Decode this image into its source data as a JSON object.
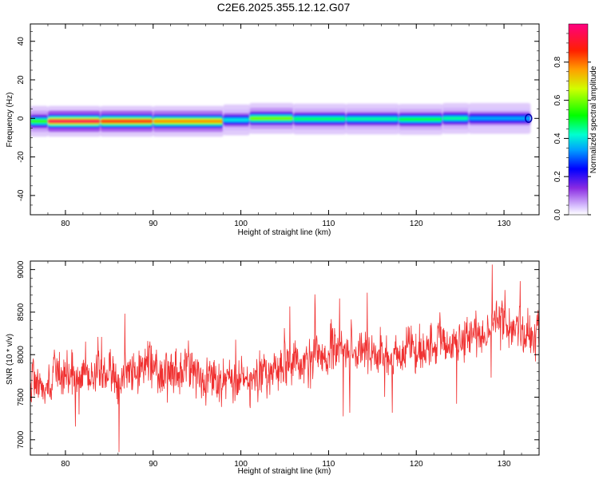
{
  "title": "C2E6.2025.355.12.12.G07",
  "colors": {
    "snr_line": "#f03030",
    "axis": "#000000",
    "background": "#ffffff"
  },
  "chart_data": [
    {
      "type": "heatmap",
      "name": "spectrogram",
      "xlabel": "Height of straight line (km)",
      "ylabel": "Frequency (Hz)",
      "xlim": [
        76,
        134
      ],
      "ylim": [
        -50,
        49
      ],
      "xticks": [
        80,
        90,
        100,
        110,
        120,
        130
      ],
      "yticks": [
        -40,
        -20,
        0,
        20,
        40
      ],
      "colorbar": {
        "label": "Normalized spectral amplitude",
        "range": [
          0,
          1
        ],
        "ticks": [
          0.0,
          0.2,
          0.4,
          0.6,
          0.8
        ],
        "tick_labels": [
          "0.0",
          "0.2",
          "0.4",
          "0.6",
          "0.8"
        ]
      },
      "ridge_segments": [
        {
          "x0": 76,
          "x1": 78,
          "center": -1.5,
          "amplitude": 0.55
        },
        {
          "x0": 78,
          "x1": 84,
          "center": -1.5,
          "amplitude": 0.95
        },
        {
          "x0": 84,
          "x1": 90,
          "center": -1.5,
          "amplitude": 0.88
        },
        {
          "x0": 90,
          "x1": 98,
          "center": -1.5,
          "amplitude": 0.78
        },
        {
          "x0": 98,
          "x1": 101,
          "center": -0.8,
          "amplitude": 0.4
        },
        {
          "x0": 101,
          "x1": 106,
          "center": 0,
          "amplitude": 0.6
        },
        {
          "x0": 106,
          "x1": 112,
          "center": -0.3,
          "amplitude": 0.48
        },
        {
          "x0": 112,
          "x1": 118,
          "center": -0.3,
          "amplitude": 0.45
        },
        {
          "x0": 118,
          "x1": 123,
          "center": -0.5,
          "amplitude": 0.5
        },
        {
          "x0": 123,
          "x1": 126,
          "center": 0,
          "amplitude": 0.45
        },
        {
          "x0": 126,
          "x1": 133,
          "center": 0,
          "amplitude": 0.35
        }
      ]
    },
    {
      "type": "line",
      "name": "snr",
      "xlabel": "Height of straight line (km)",
      "ylabel": "SNR (10 * v/v)",
      "xlim": [
        76,
        134
      ],
      "ylim": [
        6820,
        9100
      ],
      "xticks": [
        80,
        90,
        100,
        110,
        120,
        130
      ],
      "yticks": [
        7000,
        7500,
        8000,
        8500,
        9000
      ],
      "trend": {
        "x": [
          76,
          80,
          85,
          90,
          95,
          100,
          102,
          105,
          110,
          115,
          120,
          125,
          130,
          134
        ],
        "y": [
          7620,
          7700,
          7780,
          7830,
          7760,
          7600,
          7760,
          7830,
          8050,
          8000,
          8000,
          8200,
          8360,
          8200
        ]
      },
      "noise_amplitude": 230,
      "samples": 1400
    }
  ]
}
